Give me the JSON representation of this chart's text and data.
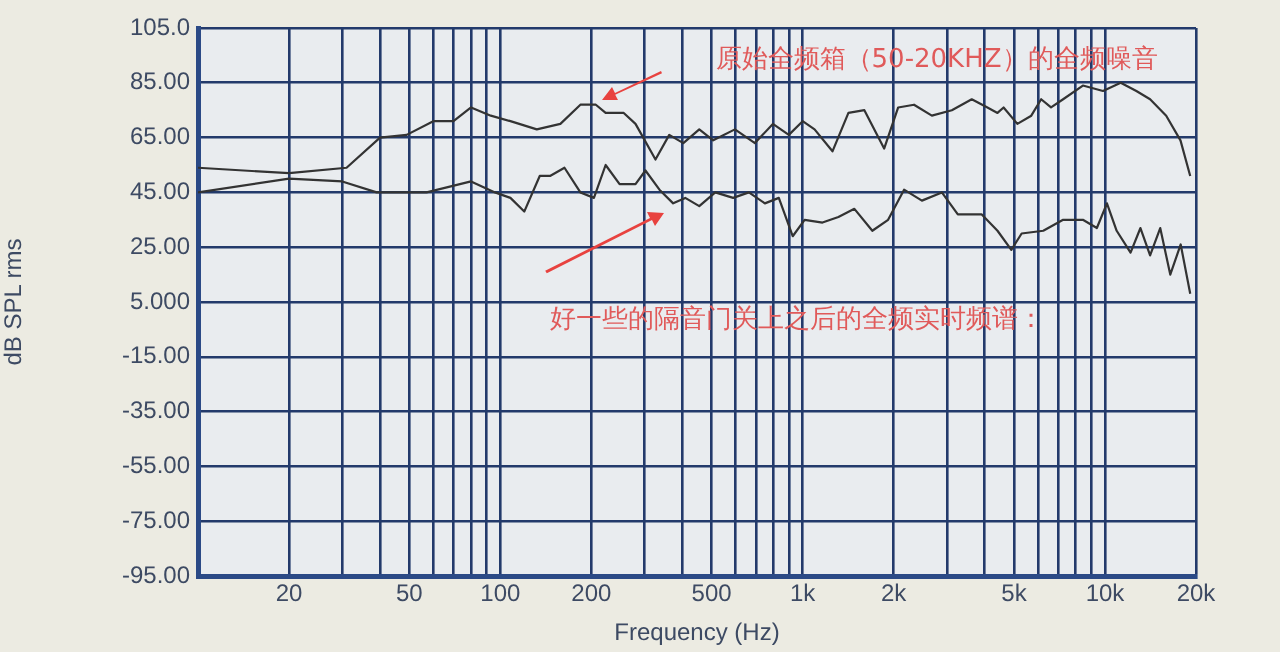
{
  "chart_data": {
    "type": "line",
    "xlabel": "Frequency (Hz)",
    "ylabel": "dB SPL rms",
    "log": "x",
    "grid": true,
    "xlim": [
      10,
      20000
    ],
    "xticks": [
      20,
      {
        "value": 30,
        "label": null
      },
      {
        "value": 40,
        "label": null
      },
      50,
      {
        "value": 60,
        "label": null
      },
      {
        "value": 70,
        "label": null
      },
      {
        "value": 80,
        "label": null
      },
      {
        "value": 90,
        "label": null
      },
      100,
      200,
      {
        "value": 300,
        "label": null
      },
      {
        "value": 400,
        "label": null
      },
      500,
      {
        "value": 600,
        "label": null
      },
      {
        "value": 700,
        "label": null
      },
      {
        "value": 800,
        "label": null
      },
      {
        "value": 900,
        "label": null
      },
      {
        "value": 1000,
        "label": "1k"
      },
      {
        "value": 2000,
        "label": "2k"
      },
      {
        "value": 3000,
        "label": null
      },
      {
        "value": 4000,
        "label": null
      },
      {
        "value": 5000,
        "label": "5k"
      },
      {
        "value": 6000,
        "label": null
      },
      {
        "value": 7000,
        "label": null
      },
      {
        "value": 8000,
        "label": null
      },
      {
        "value": 9000,
        "label": null
      },
      {
        "value": 10000,
        "label": "10k"
      },
      {
        "value": 20000,
        "label": "20k"
      }
    ],
    "ylim": [
      -95,
      105
    ],
    "yticks": [
      {
        "value": -95,
        "label": "-95.00"
      },
      {
        "value": -75,
        "label": "-75.00"
      },
      {
        "value": -55,
        "label": "-55.00"
      },
      {
        "value": -35,
        "label": "-35.00"
      },
      {
        "value": -15,
        "label": "-15.00"
      },
      {
        "value": 5,
        "label": "5.000"
      },
      {
        "value": 25,
        "label": "25.00"
      },
      {
        "value": 45,
        "label": "45.00"
      },
      {
        "value": 65,
        "label": "65.00"
      },
      {
        "value": 85,
        "label": "85.00"
      },
      {
        "value": 105,
        "label": "105.0"
      }
    ],
    "series": [
      {
        "color": "#333333",
        "x": [
          10,
          20,
          31,
          40,
          49,
          60,
          70,
          80,
          93,
          108,
          132,
          158,
          184,
          207,
          223,
          256,
          280,
          326,
          362,
          403,
          455,
          506,
          597,
          695,
          797,
          900,
          1000,
          1095,
          1255,
          1417,
          1600,
          1860,
          2070,
          2335,
          2675,
          3115,
          3625,
          4085,
          4410,
          4620,
          5130,
          5705,
          6150,
          6630,
          7270,
          8450,
          9850,
          11270,
          12700,
          14100,
          15940,
          17770,
          19140
        ],
        "values": [
          54,
          52,
          54,
          65,
          66,
          71,
          71,
          76,
          73,
          71,
          68,
          70,
          77,
          77,
          74,
          74,
          70,
          57,
          66,
          63,
          68,
          64,
          68,
          63,
          70,
          66,
          71,
          68,
          60,
          74,
          75,
          61,
          76,
          77,
          73,
          75,
          79,
          76,
          74,
          76,
          70,
          73,
          79,
          76,
          79,
          84,
          82,
          85,
          82,
          79,
          73,
          64,
          51
        ]
      },
      {
        "color": "#333333",
        "x": [
          10,
          20,
          30,
          39,
          57,
          80,
          96,
          108,
          120,
          135,
          146,
          163,
          184,
          204,
          223,
          248,
          280,
          302,
          336,
          373,
          409,
          455,
          514,
          589,
          664,
          750,
          834,
          927,
          1015,
          1163,
          1313,
          1483,
          1700,
          1917,
          2165,
          2480,
          2887,
          3260,
          3905,
          4410,
          4900,
          5300,
          6250,
          7270,
          8450,
          9400,
          10150,
          10930,
          12150,
          13100,
          14100,
          15230,
          16440,
          17800,
          19140
        ],
        "values": [
          45,
          50,
          49,
          45,
          45,
          49,
          45,
          43,
          38,
          51,
          51,
          54,
          45,
          43,
          55,
          48,
          48,
          53,
          46,
          41,
          43,
          40,
          45,
          43,
          45,
          41,
          43,
          29,
          35,
          34,
          36,
          39,
          31,
          35,
          46,
          42,
          45,
          37,
          37,
          31,
          24,
          30,
          31,
          35,
          35,
          32,
          41,
          31,
          23,
          32,
          22,
          32,
          15,
          26,
          8
        ]
      }
    ],
    "annotations": [
      "原始全频箱（50-20KHZ）的全频噪音",
      "好一些的隔音门关上之后的全频实时频谱："
    ]
  }
}
